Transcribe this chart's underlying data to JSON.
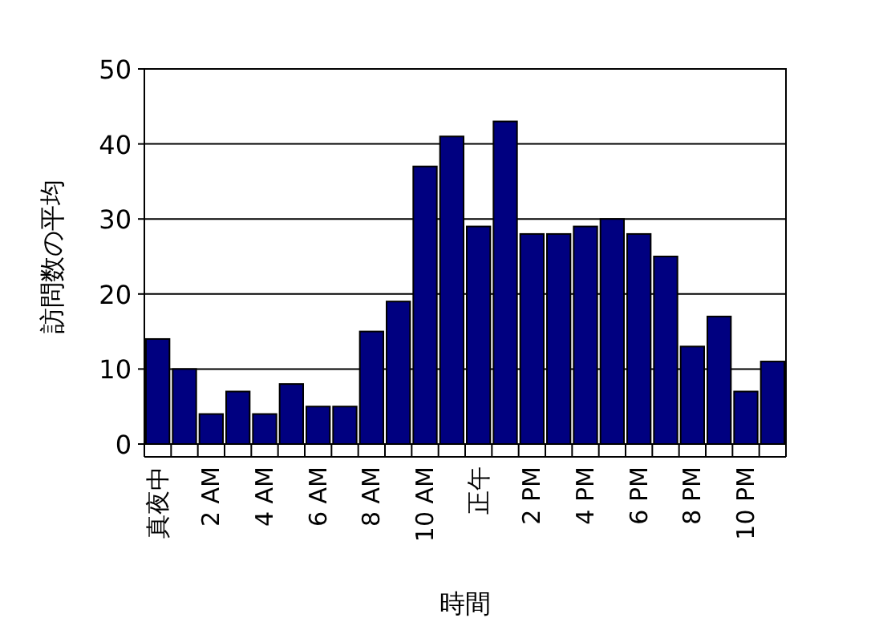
{
  "chart_data": {
    "type": "bar",
    "xlabel": "時間",
    "ylabel": "訪問数の平均",
    "categories": [
      "真夜中",
      null,
      "2 AM",
      null,
      "4 AM",
      null,
      "6 AM",
      null,
      "8 AM",
      null,
      "10 AM",
      null,
      "正午",
      null,
      "2 PM",
      null,
      "4 PM",
      null,
      "6 PM",
      null,
      "8 PM",
      null,
      "10 PM",
      null
    ],
    "values": [
      14,
      10,
      4,
      7,
      4,
      8,
      5,
      5,
      15,
      19,
      37,
      41,
      29,
      43,
      28,
      28,
      29,
      30,
      28,
      25,
      13,
      17,
      7,
      11
    ],
    "color": "#000080",
    "ylim": [
      0,
      50
    ],
    "yticks": [
      0,
      10,
      20,
      30,
      40,
      50
    ],
    "grid": "y"
  }
}
